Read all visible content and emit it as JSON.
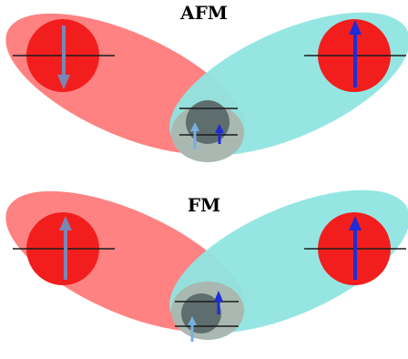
{
  "panels": [
    {
      "id": "afm",
      "title": "AFM",
      "left_atom_spin": "down",
      "right_atom_spin": "up",
      "ligand_spins": [
        "up",
        "down"
      ]
    },
    {
      "id": "fm",
      "title": "FM",
      "left_atom_spin": "up",
      "right_atom_spin": "up",
      "ligand_spins": [
        "up",
        "down"
      ]
    }
  ],
  "colors": {
    "left_lobe": "#ff7b7b",
    "right_lobe": "#8fe5e0",
    "metal_atom": "#f21e1e",
    "ligand_atom": "#5e6e6e",
    "ligand_overlap": "#a9b8b0",
    "spin_down_arrow": "#7a87b5",
    "spin_up_arrow": "#1f2bd6",
    "light_arrow": "#79aee0",
    "level_line": "#1a1a1a"
  }
}
